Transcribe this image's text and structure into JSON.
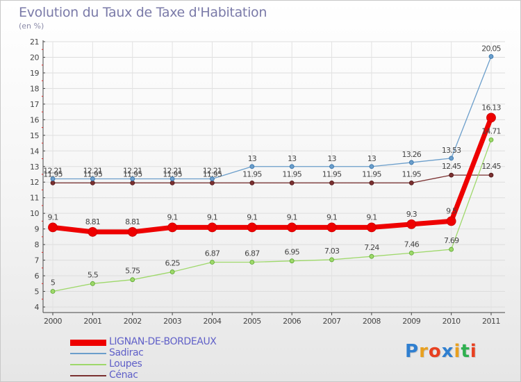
{
  "title": "Evolution du Taux de Taxe d'Habitation",
  "unit": "(en %)",
  "logo": {
    "text": "Proxiti",
    "colors": [
      "#2f7fd0",
      "#e8a020",
      "#e84020",
      "#2f7fd0",
      "#e8a020",
      "#2fb050",
      "#e84020"
    ]
  },
  "chart_data": {
    "type": "line",
    "title": "Evolution du Taux de Taxe d'Habitation",
    "ylabel": "(en %)",
    "xlabel": "",
    "x": [
      "2000",
      "2001",
      "2002",
      "2003",
      "2004",
      "2005",
      "2006",
      "2007",
      "2008",
      "2009",
      "2010",
      "2011"
    ],
    "ylim": [
      4,
      21
    ],
    "yticks": [
      "4",
      "5",
      "6",
      "7",
      "8",
      "9",
      "10",
      "11",
      "12",
      "13",
      "14",
      "15",
      "16",
      "17",
      "18",
      "19",
      "20",
      "21"
    ],
    "grid": true,
    "series": [
      {
        "name": "LIGNAN-DE-BORDEAUX",
        "color": "#ee0000",
        "values": [
          9.1,
          8.81,
          8.81,
          9.1,
          9.1,
          9.1,
          9.1,
          9.1,
          9.1,
          9.3,
          9.5,
          16.13
        ],
        "labels": [
          "9.1",
          "8.81",
          "8.81",
          "9.1",
          "9.1",
          "9.1",
          "9.1",
          "9.1",
          "9.1",
          "9.3",
          "9.5",
          "16.13"
        ]
      },
      {
        "name": "Sadirac",
        "color": "#6b9ecb",
        "values": [
          12.21,
          12.21,
          12.21,
          12.21,
          12.21,
          13,
          13,
          13,
          13,
          13.26,
          13.53,
          20.05
        ],
        "labels": [
          "12.21",
          "12.21",
          "12.21",
          "12.21",
          "12.21",
          "13",
          "13",
          "13",
          "13",
          "13.26",
          "13.53",
          "20.05"
        ]
      },
      {
        "name": "Loupes",
        "color": "#9ed86a",
        "values": [
          5,
          5.5,
          5.75,
          6.25,
          6.87,
          6.87,
          6.95,
          7.03,
          7.24,
          7.46,
          7.69,
          14.71
        ],
        "labels": [
          "5",
          "5.5",
          "5.75",
          "6.25",
          "6.87",
          "6.87",
          "6.95",
          "7.03",
          "7.24",
          "7.46",
          "7.69",
          "14.71"
        ]
      },
      {
        "name": "Cénac",
        "color": "#7a3030",
        "values": [
          11.95,
          11.95,
          11.95,
          11.95,
          11.95,
          11.95,
          11.95,
          11.95,
          11.95,
          11.95,
          12.45,
          12.45
        ],
        "labels": [
          "11.95",
          "11.95",
          "11.95",
          "11.95",
          "11.95",
          "11.95",
          "11.95",
          "11.95",
          "11.95",
          "11.95",
          "12.45",
          "12.45"
        ]
      }
    ]
  }
}
